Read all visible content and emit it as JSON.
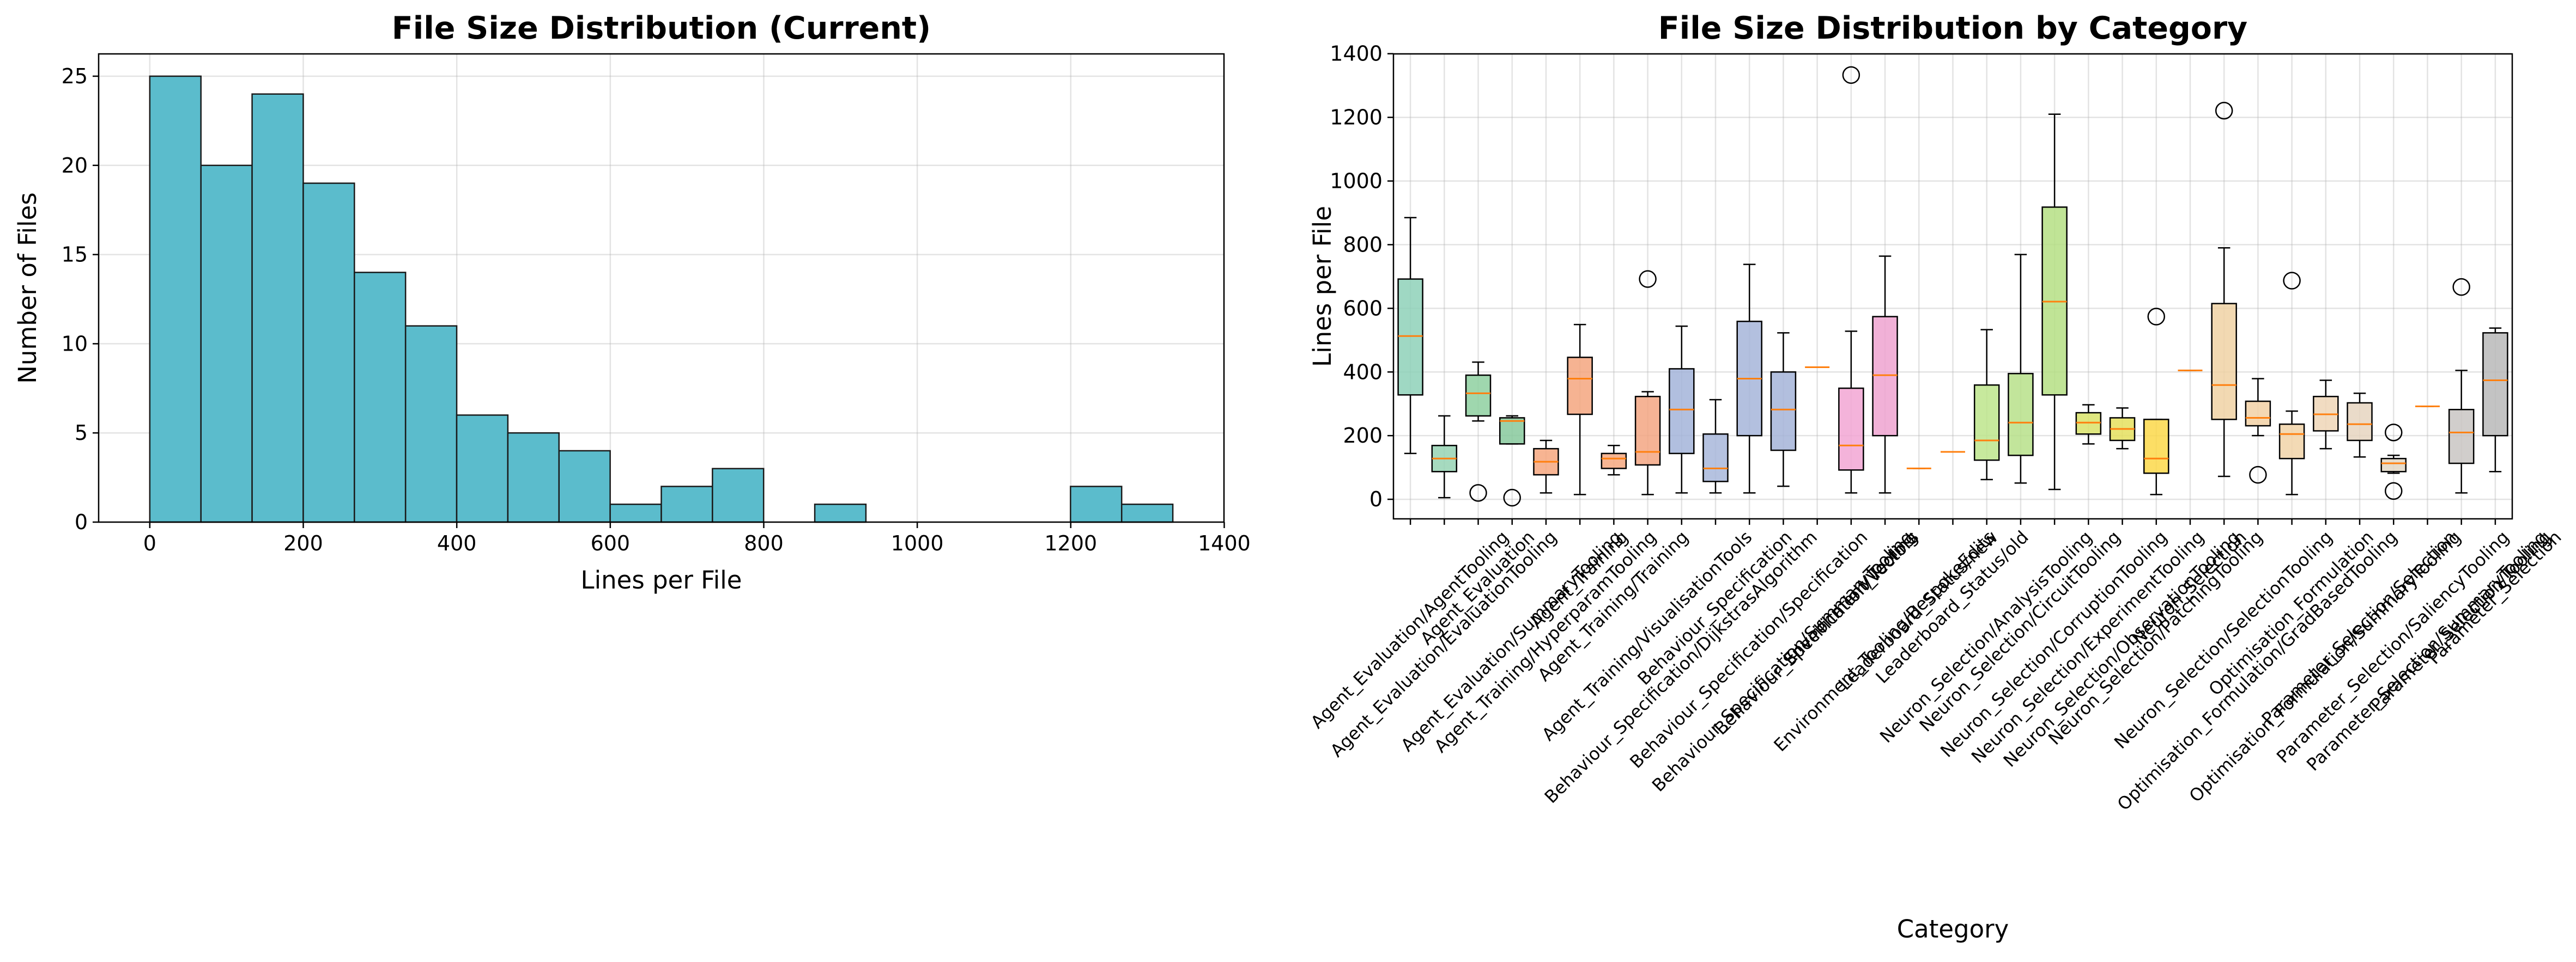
{
  "chart_data": [
    {
      "type": "histogram",
      "title": "File Size Distribution (Current)",
      "xlabel": "Lines per File",
      "ylabel": "Number of Files",
      "bins": [
        0,
        66.65,
        133.3,
        199.95,
        266.6,
        333.25,
        399.9,
        466.55,
        533.2,
        599.85,
        666.5,
        733.15,
        799.8,
        866.45,
        933.1,
        999.75,
        1066.4,
        1133.05,
        1199.7,
        1266.35,
        1333
      ],
      "values": [
        25,
        20,
        24,
        19,
        14,
        11,
        6,
        5,
        4,
        1,
        2,
        3,
        0,
        1,
        0,
        0,
        0,
        0,
        2,
        1
      ],
      "color": "#5bbccc",
      "edgecolor": "#1a1a1a",
      "xlim": [
        -66.65,
        1399.65
      ],
      "xticks": [
        0,
        200,
        400,
        600,
        800,
        1000,
        1200,
        1400
      ],
      "ylim": [
        0,
        26.25
      ],
      "yticks": [
        0,
        5,
        10,
        15,
        20,
        25
      ],
      "grid": true
    },
    {
      "type": "box",
      "title": "File Size Distribution by Category",
      "xlabel": "Category",
      "ylabel": "Lines per File",
      "categories": [
        "Agent_Evaluation/AgentTooling",
        "Agent_Evaluation/EvaluationTooling",
        "Agent_Evaluation",
        "Agent_Evaluation/SummaryTooling",
        "Agent_Training/HyperparamTooling",
        "Agent_Training",
        "Agent_Training/Training",
        "Agent_Training/VisualisationTools",
        "Behaviour_Specification/DijkstrasAlgorithm",
        "Behaviour_Specification",
        "Behaviour_Specification/Specification",
        "Behaviour_Specification/SummaryTooling",
        "Behaviour_Specification/Vectors",
        "Environment_Tooling",
        "Environment_Tooling/BespokeEdits",
        "Leaderboard_Status/new",
        "Leaderboard_Status/old",
        "Neuron_Selection/AnalysisTooling",
        "Neuron_Selection/CircuitTooling",
        "Neuron_Selection/CorruptionTooling",
        "Neuron_Selection/ExperimentTooling",
        "Neuron_Selection/ObservationTooling",
        "Neuron_Selection/PatchingTooling",
        "Neuron_Selection",
        "Neuron_Selection/SelectionTooling",
        "Optimisation_Formulation/GradBasedTooling",
        "Optimisation_Formulation",
        "Optimisation_Formulation/SummaryTooling",
        "Parameter_Selection/Selection",
        "Parameter_Selection/SaliencyTooling",
        "Parameter_Selection/SummaryTooling",
        "Parameter_Selection/Tooling",
        "Parameter_Selection"
      ],
      "boxes": [
        {
          "whislo": 144,
          "q1": 328,
          "med": 513,
          "q3": 692,
          "whishi": 885,
          "fliers": []
        },
        {
          "whislo": 5,
          "q1": 87,
          "med": 128,
          "q3": 169,
          "whishi": 262,
          "fliers": []
        },
        {
          "whislo": 246,
          "q1": 262,
          "med": 333,
          "q3": 390,
          "whishi": 431,
          "fliers": [
            20
          ]
        },
        {
          "whislo": 174,
          "q1": 174,
          "med": 246,
          "q3": 256,
          "whishi": 262,
          "fliers": [
            5
          ]
        },
        {
          "whislo": 20,
          "q1": 77,
          "med": 118,
          "q3": 159,
          "whishi": 185,
          "fliers": []
        },
        {
          "whislo": 15,
          "q1": 267,
          "med": 379,
          "q3": 446,
          "whishi": 549,
          "fliers": []
        },
        {
          "whislo": 77,
          "q1": 97,
          "med": 128,
          "q3": 144,
          "whishi": 169,
          "fliers": []
        },
        {
          "whislo": 15,
          "q1": 108,
          "med": 149,
          "q3": 323,
          "whishi": 338,
          "fliers": [
            692
          ]
        },
        {
          "whislo": 20,
          "q1": 144,
          "med": 282,
          "q3": 410,
          "whishi": 544,
          "fliers": []
        },
        {
          "whislo": 20,
          "q1": 56,
          "med": 97,
          "q3": 205,
          "whishi": 313,
          "fliers": []
        },
        {
          "whislo": 20,
          "q1": 200,
          "med": 379,
          "q3": 559,
          "whishi": 738,
          "fliers": []
        },
        {
          "whislo": 41,
          "q1": 154,
          "med": 282,
          "q3": 400,
          "whishi": 523,
          "fliers": []
        },
        {
          "whislo": 415,
          "q1": 415,
          "med": 415,
          "q3": 415,
          "whishi": 415,
          "fliers": []
        },
        {
          "whislo": 20,
          "q1": 92,
          "med": 169,
          "q3": 349,
          "whishi": 528,
          "fliers": [
            1333
          ]
        },
        {
          "whislo": 20,
          "q1": 200,
          "med": 390,
          "q3": 574,
          "whishi": 764,
          "fliers": []
        },
        {
          "whislo": 97,
          "q1": 97,
          "med": 97,
          "q3": 97,
          "whishi": 97,
          "fliers": []
        },
        {
          "whislo": 149,
          "q1": 149,
          "med": 149,
          "q3": 149,
          "whishi": 149,
          "fliers": []
        },
        {
          "whislo": 62,
          "q1": 123,
          "med": 185,
          "q3": 359,
          "whishi": 533,
          "fliers": []
        },
        {
          "whislo": 51,
          "q1": 138,
          "med": 241,
          "q3": 395,
          "whishi": 769,
          "fliers": []
        },
        {
          "whislo": 31,
          "q1": 328,
          "med": 621,
          "q3": 918,
          "whishi": 1210,
          "fliers": []
        },
        {
          "whislo": 174,
          "q1": 205,
          "med": 241,
          "q3": 272,
          "whishi": 297,
          "fliers": []
        },
        {
          "whislo": 159,
          "q1": 185,
          "med": 221,
          "q3": 256,
          "whishi": 287,
          "fliers": []
        },
        {
          "whislo": 15,
          "q1": 82,
          "med": 128,
          "q3": 251,
          "whishi": 251,
          "fliers": [
            574
          ]
        },
        {
          "whislo": 405,
          "q1": 405,
          "med": 405,
          "q3": 405,
          "whishi": 405,
          "fliers": []
        },
        {
          "whislo": 72,
          "q1": 251,
          "med": 359,
          "q3": 615,
          "whishi": 790,
          "fliers": [
            1221
          ]
        },
        {
          "whislo": 200,
          "q1": 231,
          "med": 256,
          "q3": 308,
          "whishi": 379,
          "fliers": [
            77
          ]
        },
        {
          "whislo": 15,
          "q1": 128,
          "med": 205,
          "q3": 236,
          "whishi": 277,
          "fliers": [
            687
          ]
        },
        {
          "whislo": 159,
          "q1": 215,
          "med": 267,
          "q3": 323,
          "whishi": 374,
          "fliers": []
        },
        {
          "whislo": 133,
          "q1": 185,
          "med": 236,
          "q3": 303,
          "whishi": 333,
          "fliers": []
        },
        {
          "whislo": 82,
          "q1": 87,
          "med": 113,
          "q3": 128,
          "whishi": 138,
          "fliers": [
            210,
            26
          ]
        },
        {
          "whislo": 292,
          "q1": 292,
          "med": 292,
          "q3": 292,
          "whishi": 292,
          "fliers": []
        },
        {
          "whislo": 20,
          "q1": 113,
          "med": 210,
          "q3": 282,
          "whishi": 405,
          "fliers": [
            667
          ]
        },
        {
          "whislo": 87,
          "q1": 200,
          "med": 374,
          "q3": 523,
          "whishi": 538,
          "fliers": []
        }
      ],
      "colors": [
        "#8ed1b8",
        "#97d3b4",
        "#8ed0a0",
        "#87c99c",
        "#f6a77f",
        "#f4a67f",
        "#f5a880",
        "#f3a682",
        "#a3b4d9",
        "#a8b7da",
        "#a6b5d9",
        "#a5b4d8",
        "#a5b4d8",
        "#f2a6d4",
        "#efa3d0",
        "#efa3d0",
        "#bde58c",
        "#bde58c",
        "#b7e18a",
        "#b5df84",
        "#d9e36a",
        "#e5e05e",
        "#fbd84a",
        "#f8d260",
        "#f0d2a5",
        "#f2d1a6",
        "#f1d3a8",
        "#eed6b7",
        "#e6d5bf",
        "#e2d7c5",
        "#d9d3cc",
        "#c9c6c3",
        "#b8b8b8"
      ],
      "median_color": "#ff7f0e",
      "ylim": [
        -61.4,
        1399.4
      ],
      "yticks": [
        0,
        200,
        400,
        600,
        800,
        1000,
        1200,
        1400
      ],
      "grid": true
    }
  ]
}
